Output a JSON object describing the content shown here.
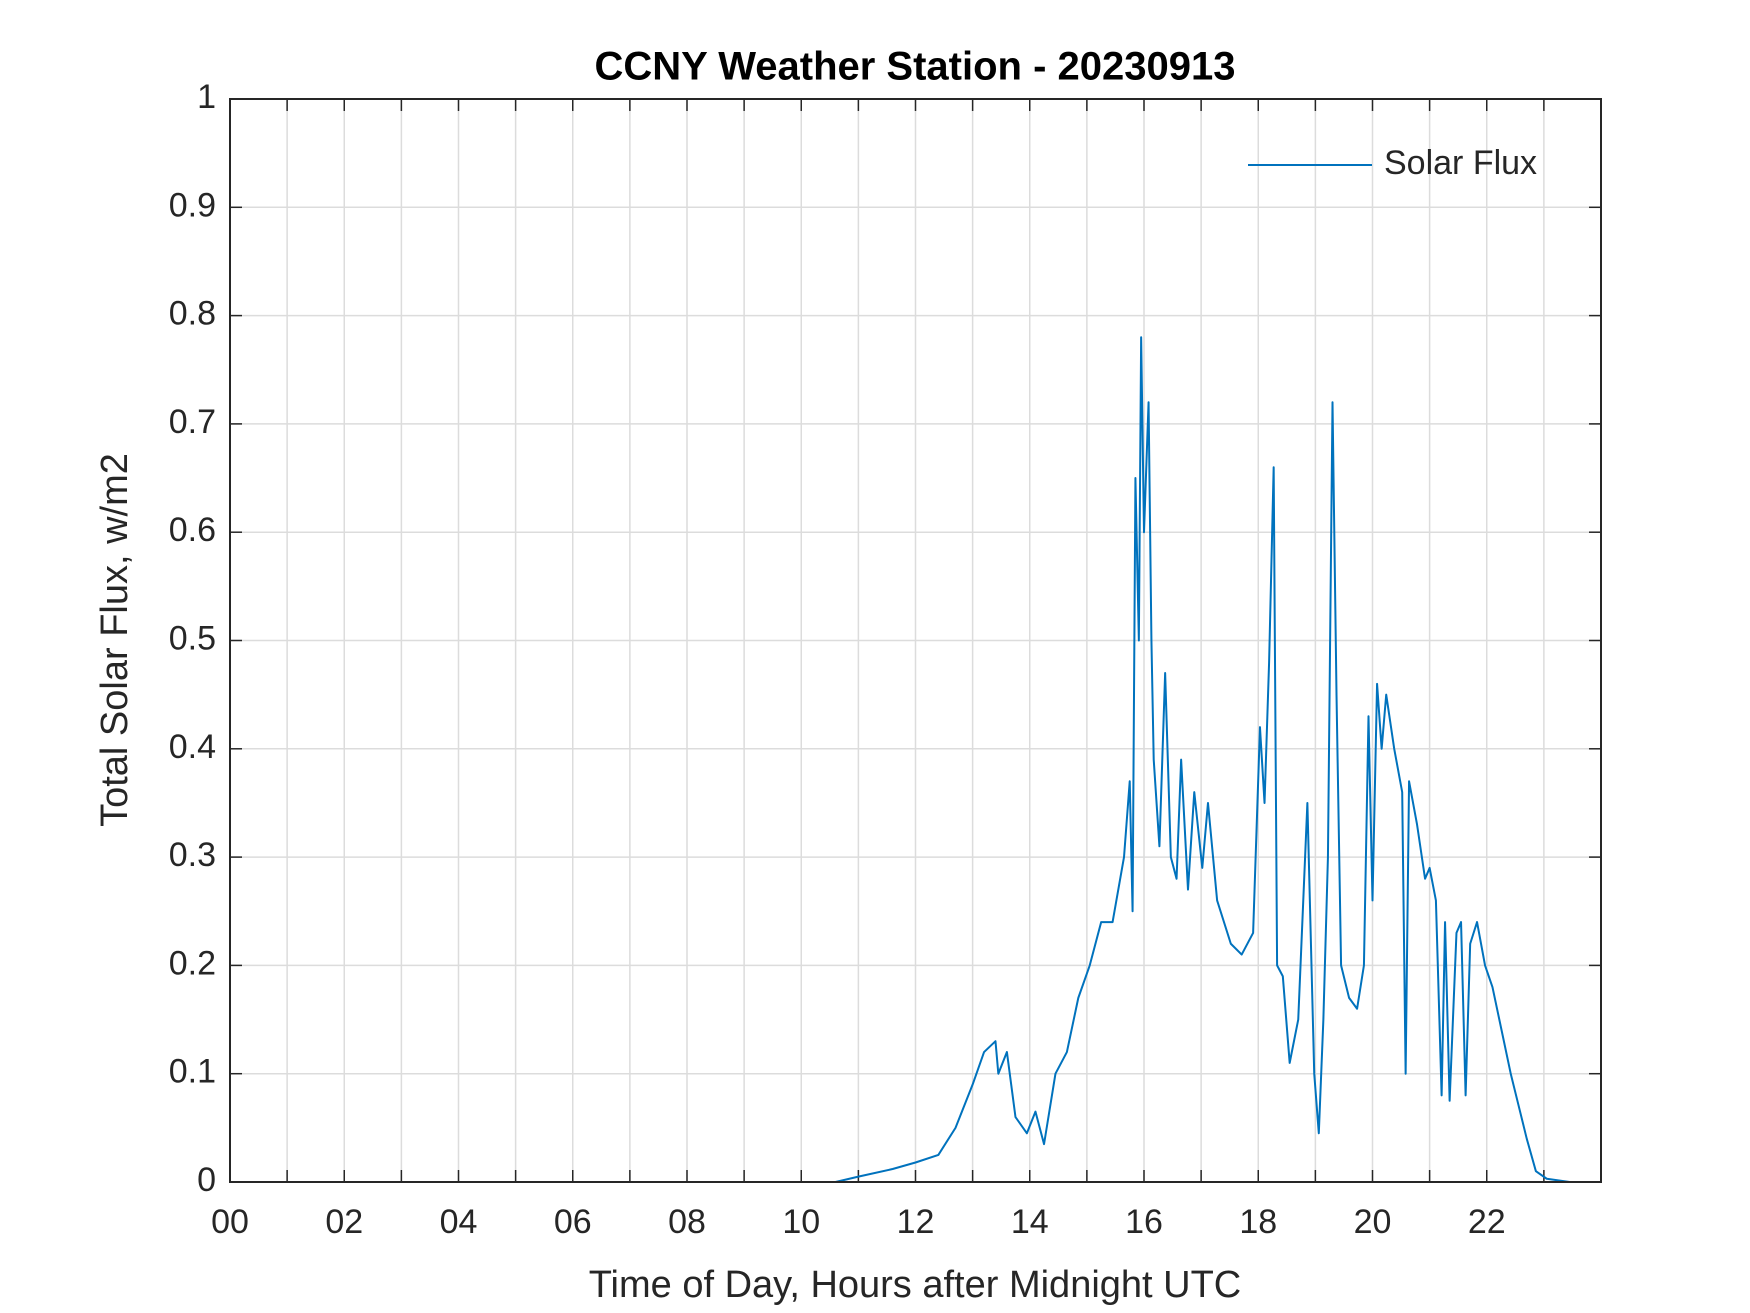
{
  "chart_data": {
    "type": "line",
    "title": "CCNY Weather Station - 20230913",
    "xlabel": "Time of Day, Hours after Midnight UTC",
    "ylabel": "Total Solar Flux, w/m2",
    "xlim": [
      0,
      24
    ],
    "ylim": [
      0,
      1
    ],
    "xticks": [
      {
        "value": 0,
        "label": "00"
      },
      {
        "value": 2,
        "label": "02"
      },
      {
        "value": 4,
        "label": "04"
      },
      {
        "value": 6,
        "label": "06"
      },
      {
        "value": 8,
        "label": "08"
      },
      {
        "value": 10,
        "label": "10"
      },
      {
        "value": 12,
        "label": "12"
      },
      {
        "value": 14,
        "label": "14"
      },
      {
        "value": 16,
        "label": "16"
      },
      {
        "value": 18,
        "label": "18"
      },
      {
        "value": 20,
        "label": "20"
      },
      {
        "value": 22,
        "label": "22"
      }
    ],
    "xminorticks": [
      1,
      3,
      5,
      7,
      9,
      11,
      13,
      15,
      17,
      19,
      21,
      23
    ],
    "yticks": [
      0,
      0.1,
      0.2,
      0.3,
      0.4,
      0.5,
      0.6,
      0.7,
      0.8,
      0.9,
      1
    ],
    "grid": true,
    "legend": "northeast",
    "series": [
      {
        "name": "Solar Flux",
        "color": "#0072bd",
        "x": [
          0,
          10.6,
          11.0,
          11.6,
          12.0,
          12.4,
          12.7,
          13.0,
          13.2,
          13.4,
          13.45,
          13.6,
          13.75,
          13.95,
          14.1,
          14.25,
          14.45,
          14.65,
          14.85,
          15.05,
          15.25,
          15.45,
          15.65,
          15.75,
          15.8,
          15.85,
          15.91,
          15.95,
          16.0,
          16.08,
          16.13,
          16.17,
          16.27,
          16.37,
          16.47,
          16.57,
          16.65,
          16.77,
          16.88,
          17.02,
          17.12,
          17.28,
          17.52,
          17.71,
          17.91,
          18.03,
          18.11,
          18.19,
          18.27,
          18.33,
          18.43,
          18.55,
          18.7,
          18.86,
          18.98,
          19.06,
          19.14,
          19.22,
          19.3,
          19.37,
          19.45,
          19.59,
          19.73,
          19.85,
          19.93,
          20.0,
          20.08,
          20.16,
          20.24,
          20.38,
          20.52,
          20.58,
          20.64,
          20.78,
          20.92,
          21.0,
          21.11,
          21.21,
          21.27,
          21.35,
          21.47,
          21.55,
          21.63,
          21.71,
          21.83,
          21.97,
          22.1,
          22.26,
          22.42,
          22.56,
          22.7,
          22.86,
          23.05,
          23.45,
          23.98
        ],
        "values": [
          0,
          0,
          0.005,
          0.012,
          0.018,
          0.025,
          0.05,
          0.09,
          0.12,
          0.13,
          0.1,
          0.12,
          0.06,
          0.045,
          0.065,
          0.035,
          0.1,
          0.12,
          0.17,
          0.2,
          0.24,
          0.24,
          0.3,
          0.37,
          0.25,
          0.65,
          0.5,
          0.78,
          0.6,
          0.72,
          0.5,
          0.39,
          0.31,
          0.47,
          0.3,
          0.28,
          0.39,
          0.27,
          0.36,
          0.29,
          0.35,
          0.26,
          0.22,
          0.21,
          0.23,
          0.42,
          0.35,
          0.48,
          0.66,
          0.2,
          0.19,
          0.11,
          0.15,
          0.35,
          0.1,
          0.045,
          0.15,
          0.3,
          0.72,
          0.45,
          0.2,
          0.17,
          0.16,
          0.2,
          0.43,
          0.26,
          0.46,
          0.4,
          0.45,
          0.4,
          0.36,
          0.1,
          0.37,
          0.33,
          0.28,
          0.29,
          0.26,
          0.08,
          0.24,
          0.075,
          0.23,
          0.24,
          0.08,
          0.22,
          0.24,
          0.2,
          0.18,
          0.14,
          0.1,
          0.07,
          0.04,
          0.01,
          0.003,
          0,
          0
        ]
      }
    ]
  }
}
